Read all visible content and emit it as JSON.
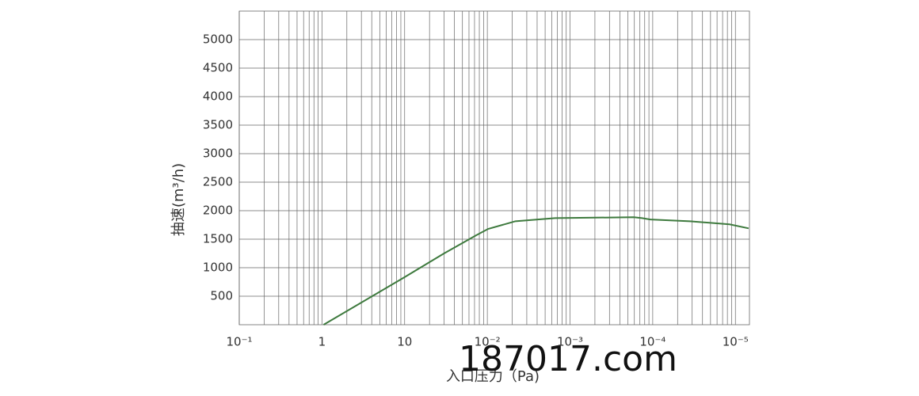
{
  "chart_data": {
    "type": "line",
    "y_label": "抽速(m³/h)",
    "x_label": "入口压力（Pa)",
    "watermark": "187017.com",
    "xlim": [
      0,
      6.17
    ],
    "xticks": [
      {
        "value": 0,
        "label": "10⁻¹"
      },
      {
        "value": 1,
        "label": "1"
      },
      {
        "value": 2,
        "label": "10"
      },
      {
        "value": 3,
        "label": "10⁻²"
      },
      {
        "value": 4,
        "label": "10⁻³"
      },
      {
        "value": 5,
        "label": "10⁻⁴"
      },
      {
        "value": 6,
        "label": "10⁻⁵"
      }
    ],
    "ylim": [
      0,
      5500
    ],
    "yticks": [
      500,
      1000,
      1500,
      2000,
      2500,
      3000,
      3500,
      4000,
      4500,
      5000
    ],
    "grid": true,
    "minor_grid": true,
    "series": [
      {
        "name": "抽速",
        "color": "#3e7a3e",
        "x": [
          1.02,
          1.96,
          2.47,
          2.86,
          3.01,
          3.34,
          3.82,
          4.77,
          4.87,
          4.97,
          5.45,
          5.93,
          6.16
        ],
        "values": [
          0,
          800,
          1245,
          1565,
          1680,
          1815,
          1870,
          1885,
          1870,
          1845,
          1815,
          1760,
          1690
        ]
      }
    ]
  }
}
